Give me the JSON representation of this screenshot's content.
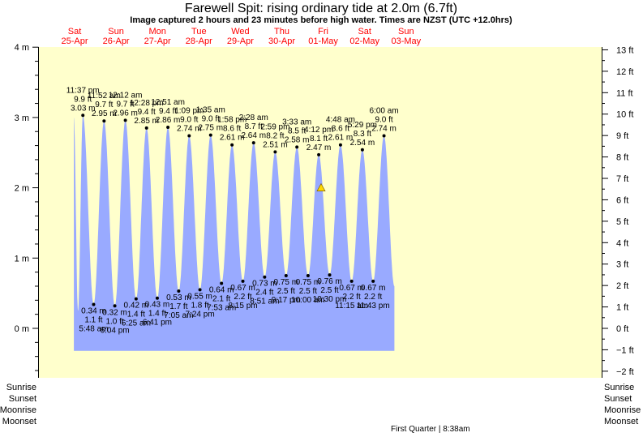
{
  "header": {
    "title": "Farewell Spit: rising  ordinary tide at 2.0m (6.7ft)",
    "subtitle": "Image captured 2 hours and 23 minutes before high water. Times are NZST (UTC +12.0hrs)"
  },
  "days": [
    {
      "dow": "Sat",
      "date": "25-Apr"
    },
    {
      "dow": "Sun",
      "date": "26-Apr"
    },
    {
      "dow": "Mon",
      "date": "27-Apr"
    },
    {
      "dow": "Tue",
      "date": "28-Apr"
    },
    {
      "dow": "Wed",
      "date": "29-Apr"
    },
    {
      "dow": "Thu",
      "date": "30-Apr"
    },
    {
      "dow": "Fri",
      "date": "01-May"
    },
    {
      "dow": "Sat",
      "date": "02-May"
    },
    {
      "dow": "Sun",
      "date": "03-May"
    }
  ],
  "left_axis_ticks": [
    "4 m",
    "3 m",
    "2 m",
    "1 m",
    "0 m"
  ],
  "right_axis_ticks": [
    "13 ft",
    "12 ft",
    "11 ft",
    "10 ft",
    "9 ft",
    "8 ft",
    "7 ft",
    "6 ft",
    "5 ft",
    "4 ft",
    "3 ft",
    "2 ft",
    "1 ft",
    "0 ft",
    "−1 ft",
    "−2 ft"
  ],
  "footer": {
    "left_labels": [
      "Sunrise",
      "Sunset",
      "Moonrise",
      "Moonset"
    ],
    "right_labels": [
      "Sunrise",
      "Sunset",
      "Moonrise",
      "Moonset"
    ],
    "moon_phase": "First Quarter | 8:38am"
  },
  "colors": {
    "background": "#ffffcc",
    "tide_fill": "#99aaff",
    "day_labels": "#ff0000",
    "marker": "#ffd700"
  },
  "chart_data": {
    "type": "area",
    "title": "Farewell Spit: rising  ordinary tide at 2.0m (6.7ft)",
    "ylabel_left": "m",
    "ylabel_right": "ft",
    "ylim_m": [
      -0.65,
      4
    ],
    "current": {
      "height_m": 2.0,
      "height_ft": 6.7,
      "status": "rising"
    },
    "extremes": [
      {
        "type": "high",
        "time": "11:37 pm",
        "ft": "9.9 ft",
        "m": "3.03 m",
        "day": 0.983,
        "height": 3.03
      },
      {
        "type": "low",
        "time": "5:48 am",
        "ft": "1.1 ft",
        "m": "0.34 m",
        "day": 1.242,
        "height": 0.34
      },
      {
        "type": "high",
        "time": "11:52 am",
        "ft": "9.7 ft",
        "m": "2.95 m",
        "day": 1.494,
        "height": 2.95
      },
      {
        "type": "low",
        "time": "6:04 pm",
        "ft": "1.0 ft",
        "m": "0.32 m",
        "day": 1.753,
        "height": 0.32
      },
      {
        "type": "high",
        "time": "12:12 am",
        "ft": "9.7 ft",
        "m": "2.96 m",
        "day": 2.008,
        "height": 2.96
      },
      {
        "type": "low",
        "time": "6:25 am",
        "ft": "1.4 ft",
        "m": "0.42 m",
        "day": 2.267,
        "height": 0.42
      },
      {
        "type": "high",
        "time": "12:28 pm",
        "ft": "9.4 ft",
        "m": "2.85 m",
        "day": 2.519,
        "height": 2.85
      },
      {
        "type": "low",
        "time": "6:41 pm",
        "ft": "1.4 ft",
        "m": "0.43 m",
        "day": 2.778,
        "height": 0.43
      },
      {
        "type": "high",
        "time": "12:51 am",
        "ft": "9.4 ft",
        "m": "2.86 m",
        "day": 3.035,
        "height": 2.86
      },
      {
        "type": "low",
        "time": "7:05 am",
        "ft": "1.7 ft",
        "m": "0.53 m",
        "day": 3.295,
        "height": 0.53
      },
      {
        "type": "high",
        "time": "1:09 pm",
        "ft": "9.0 ft",
        "m": "2.74 m",
        "day": 3.548,
        "height": 2.74
      },
      {
        "type": "low",
        "time": "7:24 pm",
        "ft": "1.8 ft",
        "m": "0.55 m",
        "day": 3.808,
        "height": 0.55
      },
      {
        "type": "high",
        "time": "1:35 am",
        "ft": "9.0 ft",
        "m": "2.75 m",
        "day": 4.066,
        "height": 2.75
      },
      {
        "type": "low",
        "time": "7:53 am",
        "ft": "2.1 ft",
        "m": "0.64 m",
        "day": 4.328,
        "height": 0.64
      },
      {
        "type": "high",
        "time": "1:58 pm",
        "ft": "8.6 ft",
        "m": "2.61 m",
        "day": 4.582,
        "height": 2.61
      },
      {
        "type": "low",
        "time": "8:15 pm",
        "ft": "2.2 ft",
        "m": "0.67 m",
        "day": 4.844,
        "height": 0.67
      },
      {
        "type": "high",
        "time": "2:28 am",
        "ft": "8.7 ft",
        "m": "2.64 m",
        "day": 5.103,
        "height": 2.64
      },
      {
        "type": "low",
        "time": "8:51 am",
        "ft": "2.4 ft",
        "m": "0.73 m",
        "day": 5.369,
        "height": 0.73
      },
      {
        "type": "high",
        "time": "2:59 pm",
        "ft": "8.2 ft",
        "m": "2.51 m",
        "day": 5.624,
        "height": 2.51
      },
      {
        "type": "low",
        "time": "9:17 pm",
        "ft": "2.5 ft",
        "m": "0.75 m",
        "day": 5.887,
        "height": 0.75
      },
      {
        "type": "high",
        "time": "3:33 am",
        "ft": "8.5 ft",
        "m": "2.58 m",
        "day": 6.148,
        "height": 2.58
      },
      {
        "type": "low",
        "time": "10:00 am",
        "ft": "2.5 ft",
        "m": "0.75 m",
        "day": 6.417,
        "height": 0.75
      },
      {
        "type": "high",
        "time": "4:12 pm",
        "ft": "8.1 ft",
        "m": "2.47 m",
        "day": 6.675,
        "height": 2.47
      },
      {
        "type": "low",
        "time": "10:30 pm",
        "ft": "2.5 ft",
        "m": "0.76 m",
        "day": 6.938,
        "height": 0.76
      },
      {
        "type": "high",
        "time": "4:48 am",
        "ft": "8.6 ft",
        "m": "2.61 m",
        "day": 7.2,
        "height": 2.61
      },
      {
        "type": "low",
        "time": "11:15 am",
        "ft": "2.2 ft",
        "m": "0.67 m",
        "day": 7.469,
        "height": 0.67
      },
      {
        "type": "high",
        "time": "5:29 pm",
        "ft": "8.3 ft",
        "m": "2.54 m",
        "day": 7.728,
        "height": 2.54
      },
      {
        "type": "low",
        "time": "11:43 pm",
        "ft": "2.2 ft",
        "m": "0.67 m",
        "day": 7.988,
        "height": 0.67
      },
      {
        "type": "high",
        "time": "6:00 am",
        "ft": "9.0 ft",
        "m": "2.74 m",
        "day": 8.25,
        "height": 2.74
      }
    ]
  }
}
